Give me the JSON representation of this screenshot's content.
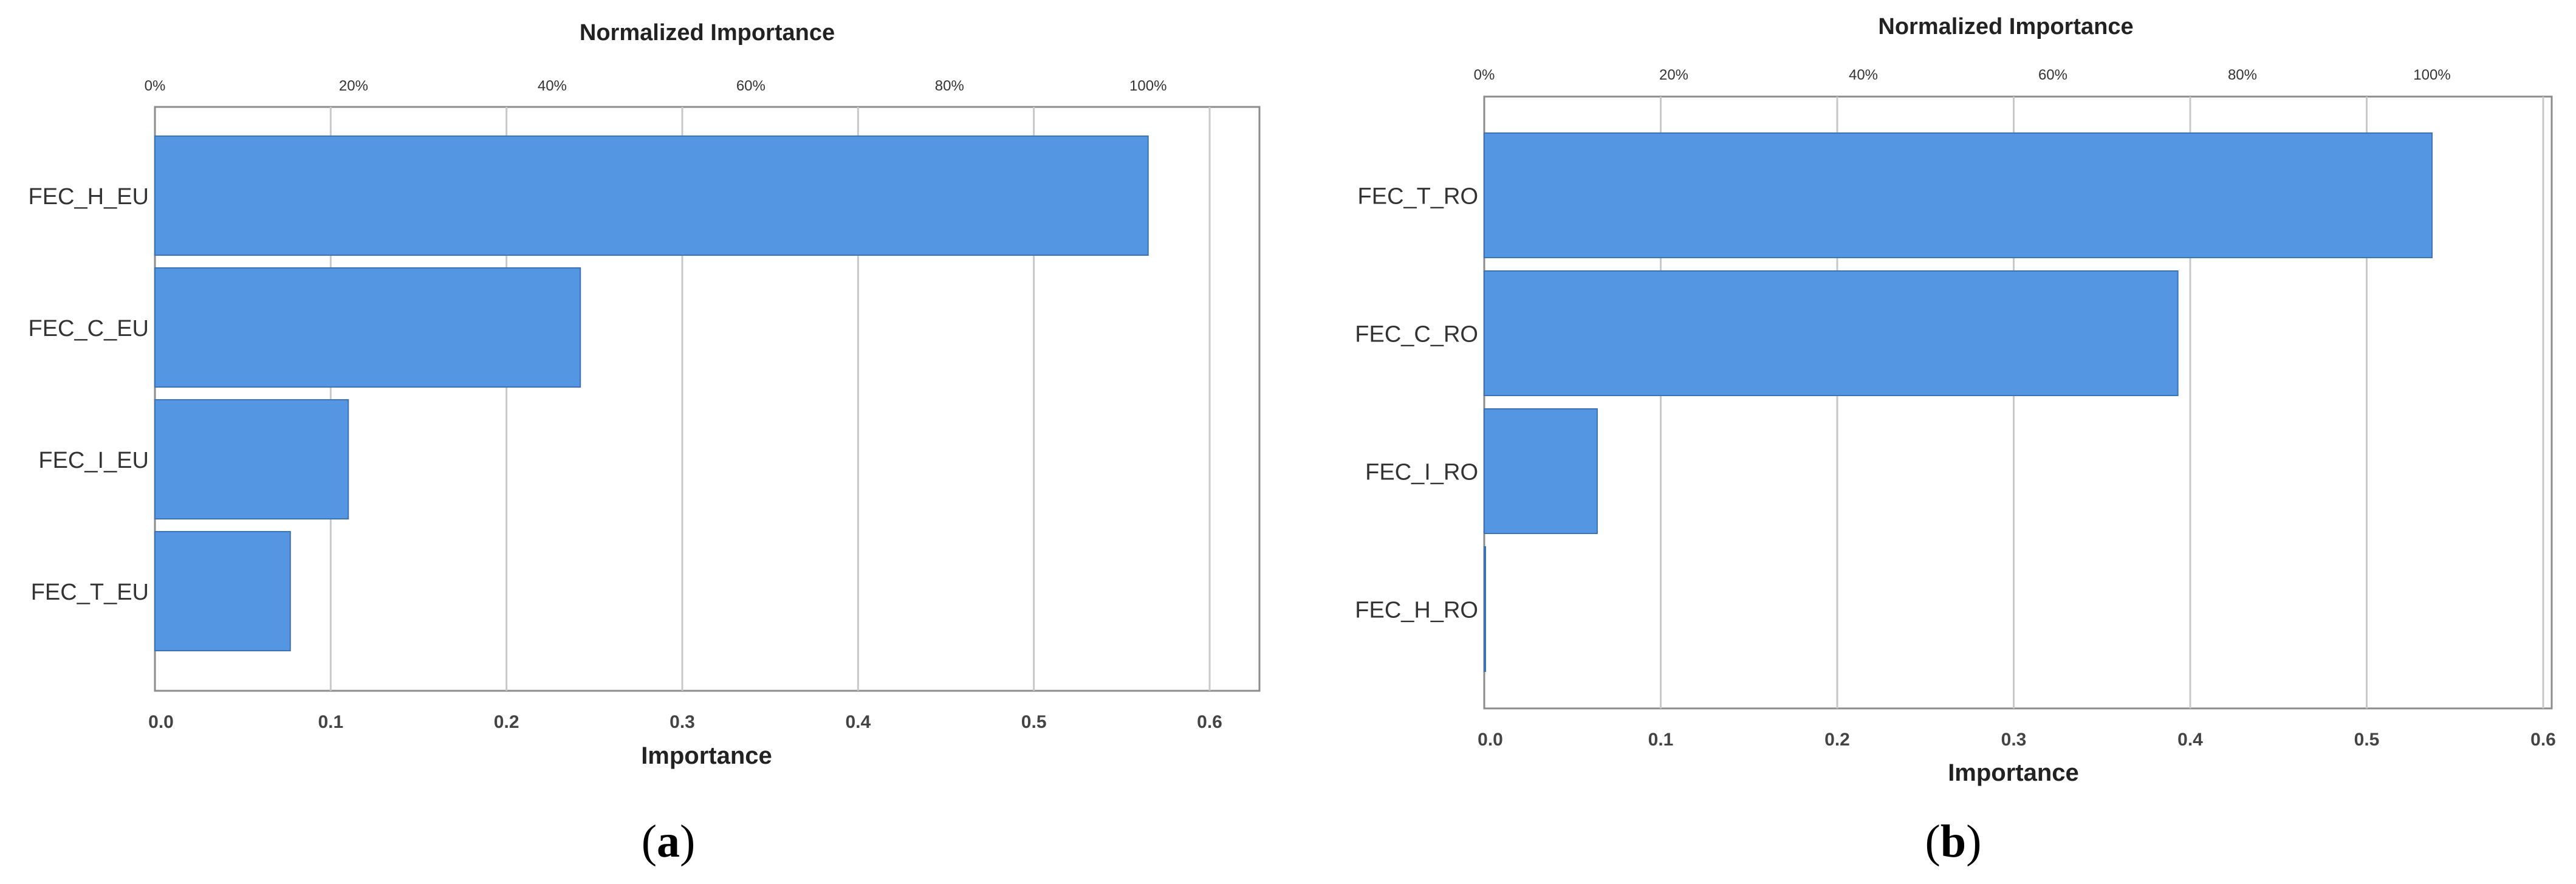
{
  "chart_data": [
    {
      "type": "bar",
      "orientation": "horizontal",
      "panel_label": "(a)",
      "title": "Normalized Importance",
      "xlabel": "Importance",
      "xlim": [
        0,
        0.63
      ],
      "x_ticks": [
        "0.0",
        "0.1",
        "0.2",
        "0.3",
        "0.4",
        "0.5",
        "0.6"
      ],
      "top_ticks": [
        "0%",
        "20%",
        "40%",
        "60%",
        "80%",
        "100%"
      ],
      "categories": [
        "FEC_H_EU",
        "FEC_C_EU",
        "FEC_I_EU",
        "FEC_T_EU"
      ],
      "values": [
        0.565,
        0.242,
        0.11,
        0.077
      ],
      "bar_color": "#5596E3",
      "grid": true
    },
    {
      "type": "bar",
      "orientation": "horizontal",
      "panel_label": "(b)",
      "title": "Normalized Importance",
      "xlabel": "Importance",
      "xlim": [
        0,
        0.6
      ],
      "x_ticks": [
        "0.0",
        "0.1",
        "0.2",
        "0.3",
        "0.4",
        "0.5",
        "0.6"
      ],
      "top_ticks": [
        "0%",
        "20%",
        "40%",
        "60%",
        "80%",
        "100%"
      ],
      "categories": [
        "FEC_T_RO",
        "FEC_C_RO",
        "FEC_I_RO",
        "FEC_H_RO"
      ],
      "values": [
        0.537,
        0.393,
        0.064,
        0.0
      ],
      "bar_color": "#5596E3",
      "grid": true
    }
  ]
}
